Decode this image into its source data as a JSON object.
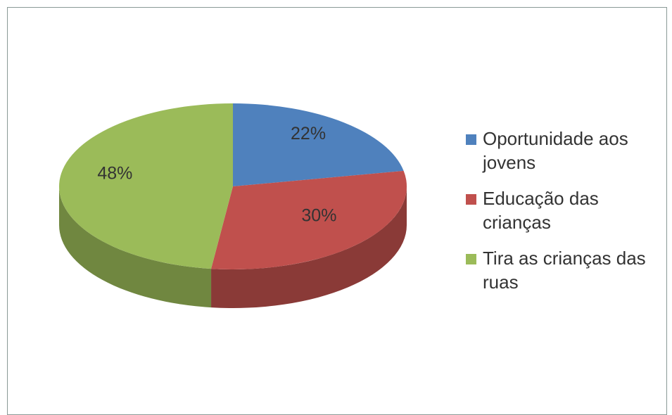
{
  "chart_data": {
    "type": "pie",
    "categories": [
      "Oportunidade aos jovens",
      "Educação das crianças",
      "Tira as crianças das ruas"
    ],
    "values": [
      22,
      30,
      48
    ],
    "value_labels": [
      "22%",
      "30%",
      "48%"
    ],
    "colors": [
      "#4f81bd",
      "#c0504d",
      "#9bbb59"
    ],
    "legend": "right"
  }
}
